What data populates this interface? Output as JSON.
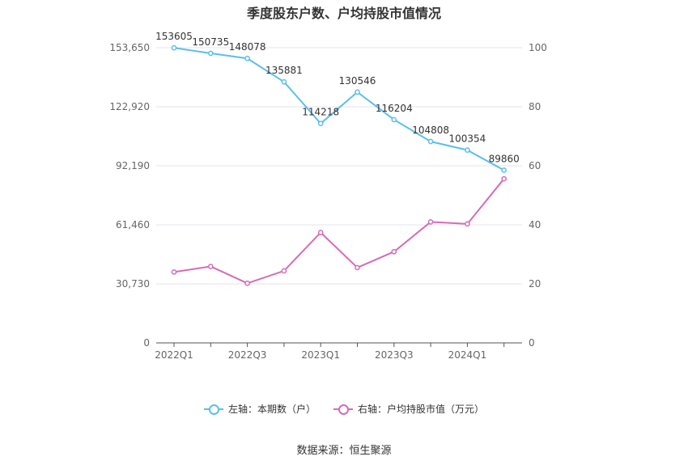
{
  "title": "季度股东户数、户均持股市值情况",
  "source_note": "数据来源：恒生聚源",
  "colors": {
    "left_series": "#5bbfea",
    "right_series": "#d66bb8",
    "grid": "#e3e3ec",
    "axis_text": "#666666"
  },
  "chart_data": {
    "type": "line",
    "x": [
      "2022Q1",
      "2022Q2",
      "2022Q3",
      "2022Q4",
      "2023Q1",
      "2023Q2",
      "2023Q3",
      "2023Q4",
      "2024Q1",
      "2024Q2"
    ],
    "x_tick_labels": [
      "2022Q1",
      "2022Q3",
      "2023Q1",
      "2023Q3",
      "2024Q1"
    ],
    "y_left_ticks": [
      "0",
      "30,730",
      "61,460",
      "92,190",
      "122,920",
      "153,650"
    ],
    "y_right_ticks": [
      "0",
      "20",
      "40",
      "60",
      "80",
      "100"
    ],
    "y_left_lim": [
      0,
      153650
    ],
    "y_right_lim": [
      0,
      100
    ],
    "grid": true,
    "legend_position": "bottom",
    "series": [
      {
        "name": "左轴：本期数（户）",
        "axis": "left",
        "values": [
          153605,
          150735,
          148078,
          135881,
          114218,
          130546,
          116204,
          104808,
          100354,
          89860
        ],
        "data_labels": [
          "153605",
          "150735",
          "148078",
          "135881",
          "114218",
          "130546",
          "116204",
          "104808",
          "100354",
          "89860"
        ]
      },
      {
        "name": "右轴：户均持股市值（万元）",
        "axis": "right",
        "values": [
          24.0,
          25.9,
          20.2,
          24.4,
          37.4,
          25.5,
          30.9,
          41.0,
          40.3,
          55.6
        ]
      }
    ]
  }
}
